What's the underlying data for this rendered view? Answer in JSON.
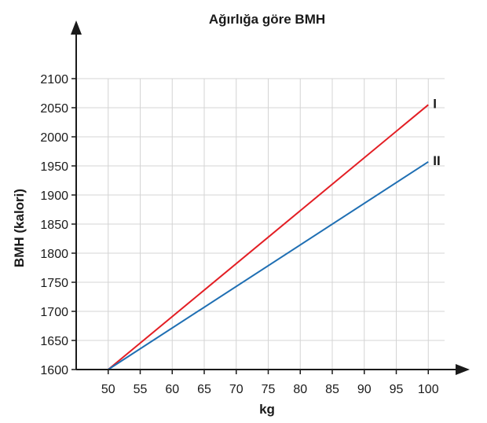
{
  "chart_data": {
    "type": "line",
    "title": "Ağırlığa göre BMH",
    "xlabel": "kg",
    "ylabel": "BMH (kalori)",
    "x": [
      50,
      100
    ],
    "xticks": [
      50,
      55,
      60,
      65,
      70,
      75,
      80,
      85,
      90,
      95,
      100
    ],
    "yticks": [
      1600,
      1650,
      1700,
      1750,
      1800,
      1850,
      1900,
      1950,
      2000,
      2050,
      2100
    ],
    "xlim": [
      45,
      105
    ],
    "ylim": [
      1600,
      2100
    ],
    "grid": true,
    "legend": "inline-end",
    "series": [
      {
        "name": "I",
        "color": "#e31e24",
        "x": [
          50,
          100
        ],
        "y": [
          1600,
          2055
        ]
      },
      {
        "name": "II",
        "color": "#1f6fb3",
        "x": [
          50,
          100
        ],
        "y": [
          1600,
          1957
        ]
      }
    ]
  }
}
